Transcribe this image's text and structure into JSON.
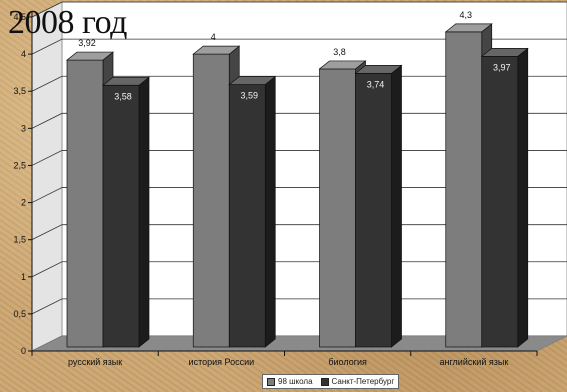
{
  "page_title": "2008 год",
  "chart_data": {
    "type": "bar",
    "title": "2008 год",
    "categories": [
      "русский язык",
      "история России",
      "биология",
      "английский язык"
    ],
    "series": [
      {
        "name": "98 школа",
        "values": [
          3.92,
          4,
          3.8,
          4.3
        ],
        "labels": [
          "3,92",
          "4",
          "3,8",
          "4,3"
        ],
        "color": "#7d7d7d"
      },
      {
        "name": "Санкт-Петербург",
        "values": [
          3.58,
          3.59,
          3.74,
          3.97
        ],
        "labels": [
          "3,58",
          "3,59",
          "3,74",
          "3,97"
        ],
        "color": "#333333"
      }
    ],
    "y_ticks": [
      0,
      0.5,
      1,
      1.5,
      2,
      2.5,
      3,
      3.5,
      4,
      4.5
    ],
    "y_tick_labels": [
      "0",
      "0,5",
      "1",
      "1,5",
      "2",
      "2,5",
      "3",
      "3,5",
      "4",
      "4,5"
    ],
    "ylim": [
      0,
      4.5
    ],
    "grid": true,
    "style": "3d",
    "legend_position": "bottom"
  }
}
